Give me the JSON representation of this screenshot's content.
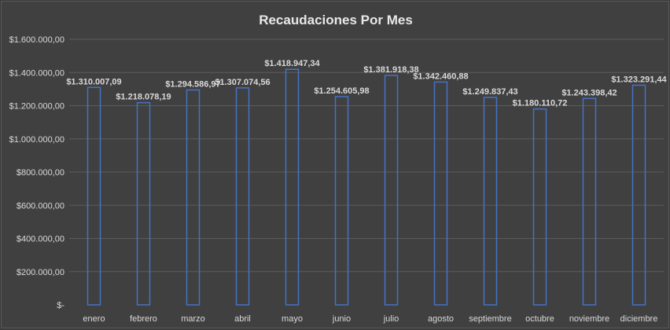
{
  "chart_data": {
    "type": "bar",
    "title": "Recaudaciones Por Mes",
    "xlabel": "",
    "ylabel": "",
    "categories": [
      "enero",
      "febrero",
      "marzo",
      "abril",
      "mayo",
      "junio",
      "julio",
      "agosto",
      "septiembre",
      "octubre",
      "noviembre",
      "diciembre"
    ],
    "values": [
      1310007.09,
      1218078.19,
      1294586.97,
      1307074.56,
      1418947.34,
      1254605.98,
      1381918.38,
      1342460.88,
      1249837.43,
      1180110.72,
      1243398.42,
      1323291.44
    ],
    "data_labels": [
      "$1.310.007,09",
      "$1.218.078,19",
      "$1.294.586,97",
      "$1.307.074,56",
      "$1.418.947,34",
      "$1.254.605,98",
      "$1.381.918,38",
      "$1.342.460,88",
      "$1.249.837,43",
      "$1.180.110,72",
      "$1.243.398,42",
      "$1.323.291,44"
    ],
    "ylim": [
      0,
      1600000
    ],
    "y_ticks": [
      0,
      200000,
      400000,
      600000,
      800000,
      1000000,
      1200000,
      1400000,
      1600000
    ],
    "y_tick_labels": [
      "$-",
      "$200.000,00",
      "$400.000,00",
      "$600.000,00",
      "$800.000,00",
      "$1.000.000,00",
      "$1.200.000,00",
      "$1.400.000,00",
      "$1.600.000,00"
    ],
    "grid": true,
    "legend": "none",
    "colors": {
      "background": "#404040",
      "bar_outline": "#4472c4",
      "text": "#d9d9d9",
      "gridline": "#5c5c5c"
    }
  }
}
